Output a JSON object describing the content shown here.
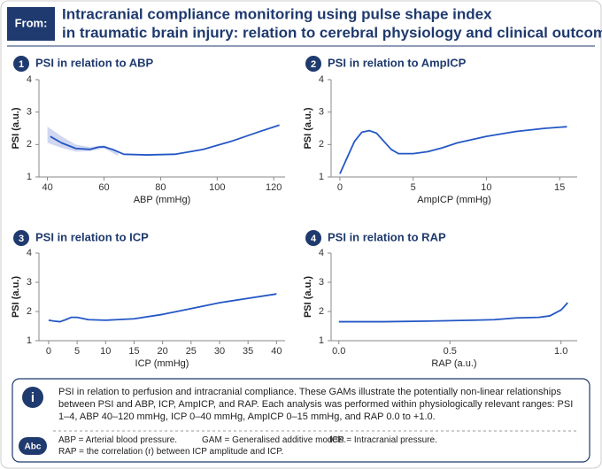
{
  "header": {
    "label": "From:",
    "title_lines": [
      "Intracranial compliance monitoring using pulse shape index",
      "in traumatic brain injury: relation to cerebral physiology and clinical outcome"
    ]
  },
  "chart_data": [
    {
      "type": "line",
      "number": "1",
      "title": "PSI in relation to ABP",
      "x_label": "ABP (mmHg)",
      "y_label": "PSI (a.u.)",
      "xlim": [
        37,
        124
      ],
      "xticks": [
        40,
        60,
        80,
        100,
        120
      ],
      "ylim": [
        1,
        4
      ],
      "yticks": [
        1,
        2,
        3,
        4
      ],
      "series": [
        {
          "color": "#2457c5",
          "x": [
            41,
            45,
            50,
            55,
            58,
            60,
            63,
            67,
            75,
            85,
            95,
            105,
            115,
            122
          ],
          "values": [
            2.25,
            2.05,
            1.88,
            1.85,
            1.92,
            1.93,
            1.85,
            1.7,
            1.68,
            1.7,
            1.85,
            2.1,
            2.4,
            2.6
          ]
        }
      ],
      "band": {
        "color": "#c5cdee",
        "x": [
          40,
          45,
          50,
          55,
          60,
          65
        ],
        "lower": [
          2.05,
          1.9,
          1.78,
          1.8,
          1.88,
          1.65
        ],
        "upper": [
          2.55,
          2.25,
          2.0,
          1.92,
          1.98,
          1.75
        ]
      }
    },
    {
      "type": "line",
      "number": "2",
      "title": "PSI in relation to AmpICP",
      "x_label": "AmpICP (mmHg)",
      "y_label": "PSI (a.u.)",
      "xlim": [
        -0.6,
        16.2
      ],
      "xticks": [
        0,
        5,
        10,
        15
      ],
      "ylim": [
        1,
        4
      ],
      "yticks": [
        1,
        2,
        3,
        4
      ],
      "series": [
        {
          "color": "#2457c5",
          "x": [
            0,
            0.5,
            1,
            1.5,
            2,
            2.5,
            3,
            3.5,
            4,
            5,
            6,
            7,
            8,
            10,
            12,
            14,
            15.5
          ],
          "values": [
            1.1,
            1.6,
            2.1,
            2.38,
            2.43,
            2.35,
            2.1,
            1.85,
            1.72,
            1.72,
            1.78,
            1.9,
            2.05,
            2.25,
            2.4,
            2.5,
            2.55
          ]
        }
      ]
    },
    {
      "type": "line",
      "number": "3",
      "title": "PSI in relation to ICP",
      "x_label": "ICP (mmHg)",
      "y_label": "PSI (a.u.)",
      "xlim": [
        -1.7,
        41.5
      ],
      "xticks": [
        0,
        5,
        10,
        15,
        20,
        25,
        30,
        35,
        40
      ],
      "ylim": [
        1,
        4
      ],
      "yticks": [
        1,
        2,
        3,
        4
      ],
      "series": [
        {
          "color": "#2457c5",
          "x": [
            0,
            1,
            2,
            3,
            4,
            5,
            7,
            10,
            15,
            20,
            25,
            30,
            35,
            40
          ],
          "values": [
            1.7,
            1.67,
            1.65,
            1.72,
            1.8,
            1.8,
            1.72,
            1.7,
            1.75,
            1.9,
            2.1,
            2.3,
            2.45,
            2.6
          ]
        }
      ]
    },
    {
      "type": "line",
      "number": "4",
      "title": "PSI in relation to RAP",
      "x_label": "RAP (a.u.)",
      "y_label": "PSI (a.u.)",
      "xlim": [
        -0.035,
        1.073
      ],
      "xticks": [
        {
          "value": 0,
          "label": "0.0"
        },
        0.5,
        {
          "value": 1,
          "label": "1.0"
        }
      ],
      "ylim": [
        1,
        4
      ],
      "yticks": [
        1,
        2,
        3,
        4
      ],
      "series": [
        {
          "color": "#2457c5",
          "x": [
            0,
            0.2,
            0.4,
            0.6,
            0.7,
            0.8,
            0.9,
            0.95,
            1.0,
            1.03
          ],
          "values": [
            1.65,
            1.65,
            1.67,
            1.7,
            1.72,
            1.78,
            1.8,
            1.85,
            2.05,
            2.3
          ]
        }
      ]
    }
  ],
  "info": {
    "icon": "i",
    "text": "PSI in relation to perfusion and intracranial compliance. These GAMs illustrate the potentially non-linear relationships between PSI and ABP, ICP, AmpICP, and RAP. Each analysis was performed within physiologically relevant ranges: PSI 1–4, ABP 40–120 mmHg, ICP 0–40 mmHg, AmpICP 0–15 mmHg, and RAP 0.0 to +1.0."
  },
  "abbreviations": {
    "icon": "Abc",
    "items": [
      "ABP = Arterial blood pressure.",
      "GAM = Generalised additive models.",
      "ICP = Intracranial pressure.",
      "RAP = the correlation (r) between ICP amplitude and ICP."
    ]
  }
}
